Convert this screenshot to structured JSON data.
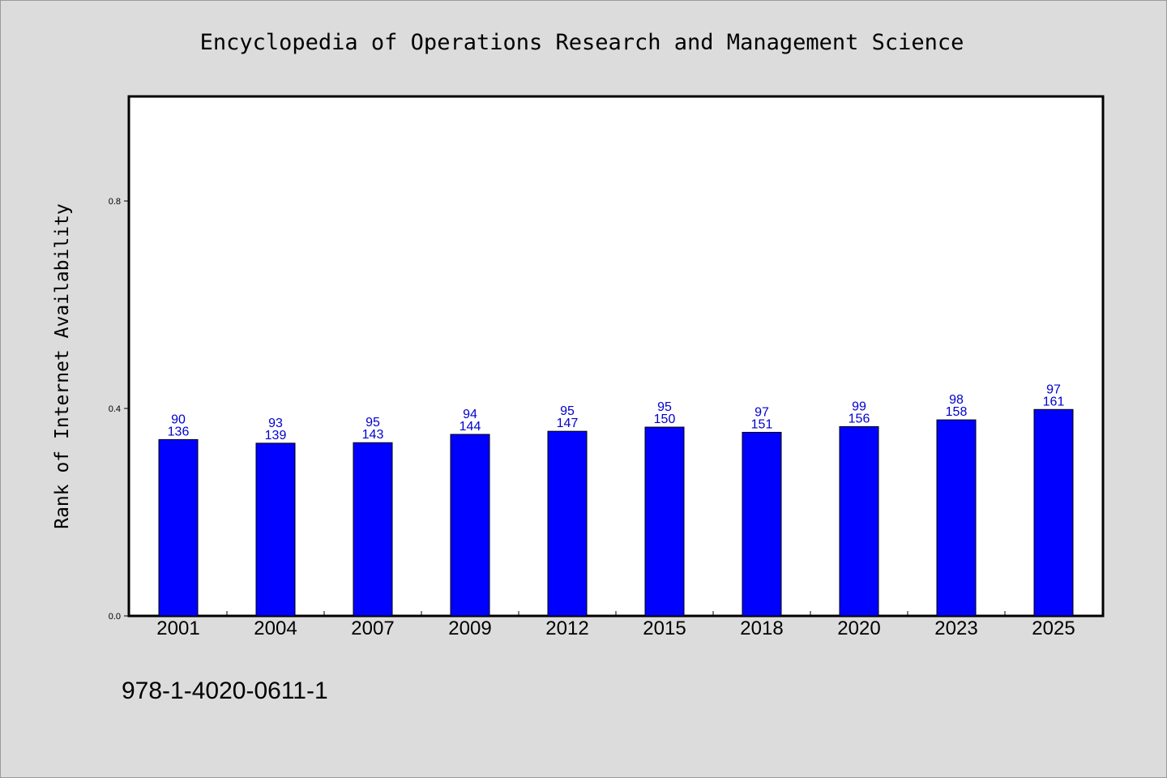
{
  "chart_data": {
    "type": "bar",
    "title": "Encyclopedia of Operations Research and Management Science",
    "ylabel": "Rank of Internet Availability",
    "xlabel": "",
    "ylim": [
      0,
      1.0
    ],
    "yticks": [
      0.0,
      0.4,
      0.8
    ],
    "ytick_labels": [
      "0.0",
      "0.4",
      "0.8"
    ],
    "categories": [
      "2001",
      "2004",
      "2007",
      "2009",
      "2012",
      "2015",
      "2018",
      "2020",
      "2023",
      "2025"
    ],
    "values": [
      0.34,
      0.333,
      0.334,
      0.35,
      0.356,
      0.364,
      0.354,
      0.365,
      0.378,
      0.398
    ],
    "labels_top": [
      "90",
      "93",
      "95",
      "94",
      "95",
      "95",
      "97",
      "99",
      "98",
      "97"
    ],
    "labels_bottom": [
      "136",
      "139",
      "143",
      "144",
      "147",
      "150",
      "151",
      "156",
      "158",
      "161"
    ],
    "bar_color": "#0000ff",
    "label_color": "#0000cc",
    "grid": false,
    "footer_text": "978-1-4020-0611-1"
  }
}
